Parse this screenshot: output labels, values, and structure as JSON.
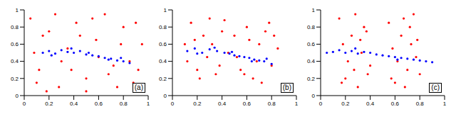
{
  "chart_data": [
    {
      "type": "scatter",
      "title": "(a)",
      "xlim": [
        0,
        1
      ],
      "ylim": [
        0,
        1
      ],
      "xticks": [
        0,
        0.2,
        0.4,
        0.6,
        0.8,
        1
      ],
      "yticks": [
        0,
        0.2,
        0.4,
        0.6,
        0.8,
        1
      ],
      "grid": false,
      "series": [
        {
          "color": "#ff0000",
          "x": [
            0.05,
            0.12,
            0.2,
            0.28,
            0.35,
            0.42,
            0.5,
            0.58,
            0.65,
            0.72,
            0.8,
            0.88,
            0.95,
            0.08,
            0.18,
            0.3,
            0.45,
            0.55,
            0.68,
            0.78,
            0.9,
            0.1,
            0.25,
            0.38,
            0.6,
            0.75,
            0.85,
            0.15,
            0.5,
            0.92
          ],
          "values": [
            0.9,
            0.3,
            0.75,
            0.1,
            0.55,
            0.85,
            0.2,
            0.65,
            0.95,
            0.35,
            0.8,
            0.15,
            0.6,
            0.5,
            0.05,
            0.4,
            0.7,
            0.9,
            0.25,
            0.6,
            0.85,
            0.15,
            0.95,
            0.3,
            0.45,
            0.1,
            0.4,
            0.7,
            0.05,
            0.3
          ]
        },
        {
          "color": "#0000ff",
          "x": [
            0.15,
            0.2,
            0.25,
            0.3,
            0.35,
            0.4,
            0.45,
            0.5,
            0.55,
            0.6,
            0.65,
            0.7,
            0.75,
            0.8,
            0.85,
            0.22,
            0.38,
            0.52,
            0.68,
            0.78
          ],
          "values": [
            0.5,
            0.52,
            0.49,
            0.53,
            0.51,
            0.5,
            0.52,
            0.48,
            0.47,
            0.46,
            0.44,
            0.43,
            0.41,
            0.4,
            0.38,
            0.47,
            0.55,
            0.5,
            0.42,
            0.44
          ]
        }
      ]
    },
    {
      "type": "scatter",
      "title": "(b)",
      "xlim": [
        0,
        1
      ],
      "ylim": [
        0,
        1
      ],
      "xticks": [
        0,
        0.2,
        0.4,
        0.6,
        0.8,
        1
      ],
      "yticks": [
        0,
        0.2,
        0.4,
        0.6,
        0.8,
        1
      ],
      "grid": false,
      "series": [
        {
          "color": "#ff0000",
          "x": [
            0.1,
            0.15,
            0.2,
            0.25,
            0.3,
            0.35,
            0.4,
            0.45,
            0.12,
            0.22,
            0.32,
            0.42,
            0.18,
            0.28,
            0.38,
            0.5,
            0.55,
            0.6,
            0.65,
            0.7,
            0.75,
            0.8,
            0.85,
            0.52,
            0.62,
            0.72,
            0.82,
            0.58,
            0.68,
            0.78
          ],
          "values": [
            0.6,
            0.85,
            0.3,
            0.7,
            0.9,
            0.25,
            0.75,
            0.5,
            0.4,
            0.2,
            0.6,
            0.88,
            0.65,
            0.45,
            0.35,
            0.7,
            0.3,
            0.8,
            0.2,
            0.6,
            0.75,
            0.35,
            0.55,
            0.45,
            0.65,
            0.15,
            0.7,
            0.25,
            0.4,
            0.85
          ]
        },
        {
          "color": "#0000ff",
          "x": [
            0.12,
            0.18,
            0.24,
            0.3,
            0.36,
            0.42,
            0.46,
            0.5,
            0.54,
            0.58,
            0.62,
            0.66,
            0.7,
            0.74,
            0.8,
            0.2,
            0.34,
            0.48,
            0.64,
            0.76
          ],
          "values": [
            0.52,
            0.55,
            0.5,
            0.54,
            0.52,
            0.5,
            0.49,
            0.47,
            0.46,
            0.45,
            0.44,
            0.42,
            0.41,
            0.4,
            0.37,
            0.49,
            0.56,
            0.51,
            0.4,
            0.43
          ]
        }
      ]
    },
    {
      "type": "scatter",
      "title": "(c)",
      "xlim": [
        0,
        1
      ],
      "ylim": [
        0,
        1
      ],
      "xticks": [
        0,
        0.2,
        0.4,
        0.6,
        0.8,
        1
      ],
      "yticks": [
        0,
        0.2,
        0.4,
        0.6,
        0.8,
        1
      ],
      "grid": false,
      "series": [
        {
          "color": "#ff0000",
          "x": [
            0.15,
            0.2,
            0.25,
            0.3,
            0.35,
            0.4,
            0.18,
            0.28,
            0.38,
            0.22,
            0.32,
            0.17,
            0.27,
            0.37,
            0.33,
            0.55,
            0.6,
            0.65,
            0.7,
            0.75,
            0.8,
            0.58,
            0.68,
            0.78,
            0.62,
            0.72,
            0.57,
            0.67,
            0.77,
            0.73
          ],
          "values": [
            0.9,
            0.2,
            0.7,
            0.1,
            0.8,
            0.35,
            0.6,
            0.95,
            0.25,
            0.4,
            0.65,
            0.15,
            0.3,
            0.75,
            0.5,
            0.85,
            0.15,
            0.7,
            0.3,
            0.95,
            0.25,
            0.55,
            0.1,
            0.65,
            0.4,
            0.8,
            0.2,
            0.9,
            0.45,
            0.6
          ]
        },
        {
          "color": "#0000ff",
          "x": [
            0.05,
            0.1,
            0.15,
            0.2,
            0.25,
            0.3,
            0.35,
            0.4,
            0.45,
            0.5,
            0.55,
            0.6,
            0.65,
            0.7,
            0.75,
            0.8,
            0.85,
            0.9,
            0.28,
            0.62
          ],
          "values": [
            0.5,
            0.51,
            0.53,
            0.5,
            0.52,
            0.49,
            0.51,
            0.5,
            0.48,
            0.47,
            0.46,
            0.45,
            0.44,
            0.43,
            0.42,
            0.41,
            0.4,
            0.39,
            0.55,
            0.42
          ]
        }
      ]
    }
  ]
}
